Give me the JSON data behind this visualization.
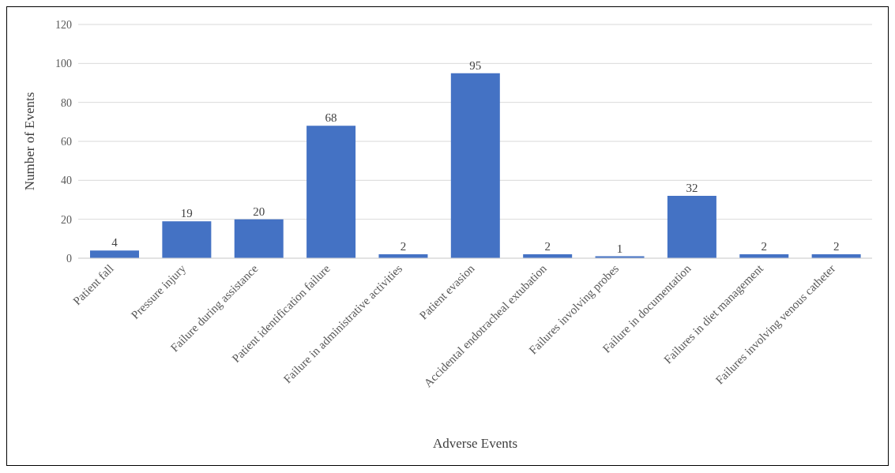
{
  "chart_data": {
    "type": "bar",
    "xlabel": "Adverse Events",
    "ylabel": "Number of Events",
    "categories": [
      "Patient fall",
      "Pressure injury",
      "Failure during assistance",
      "Patient identification failure",
      "Failure in administrative activities",
      "Patient evasion",
      "Accidental endotracheal extubation",
      "Failures involving probes",
      "Failure in documentation",
      "Failures in diet management",
      "Failures involving venous catheter"
    ],
    "values": [
      4,
      19,
      20,
      68,
      2,
      95,
      2,
      1,
      32,
      2,
      2
    ],
    "color": "#4472c4",
    "ylim": [
      0,
      120
    ],
    "yticks": [
      0,
      20,
      40,
      60,
      80,
      100,
      120
    ],
    "grid": "y",
    "data_labels": true
  }
}
